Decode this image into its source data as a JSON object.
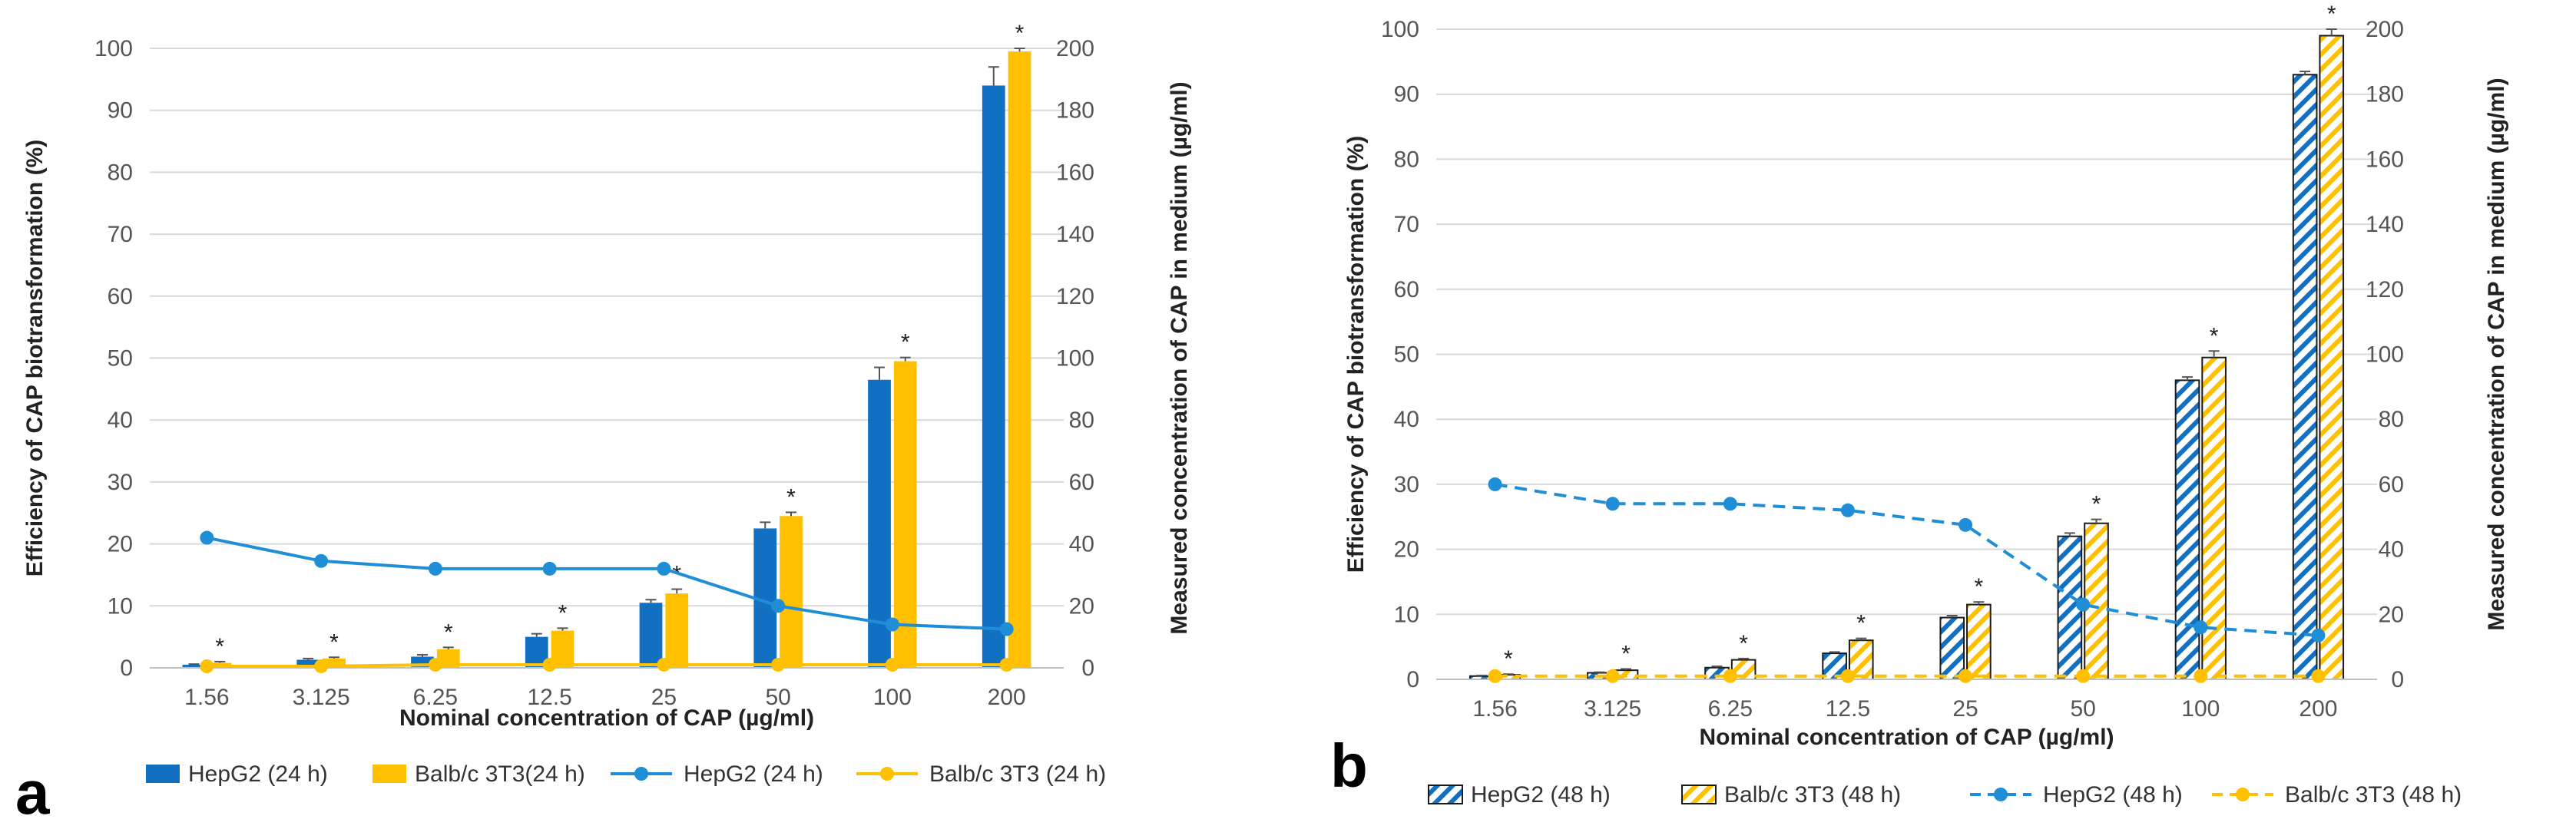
{
  "colors": {
    "hepg2": "#1270C3",
    "balbc": "#FFC000",
    "line_hepg2": "#1F8ED6",
    "line_balbc": "#FFC000"
  },
  "chart_data": [
    {
      "panel_label": "a",
      "type": "bar+line",
      "categories": [
        "1.56",
        "3.125",
        "6.25",
        "12.5",
        "25",
        "50",
        "100",
        "200"
      ],
      "xlabel": "Nominal concentration of CAP (µg/ml)",
      "ylabel": "Efficiency of CAP biotransformation (%)",
      "y2label": "Measured concentration of CAP in medium (µg/ml)",
      "ylim": [
        0,
        100
      ],
      "yticks": [
        0,
        10,
        20,
        30,
        40,
        50,
        60,
        70,
        80,
        90,
        100
      ],
      "y2lim": [
        0,
        200
      ],
      "y2ticks": [
        0,
        20,
        40,
        60,
        80,
        100,
        120,
        140,
        160,
        180,
        200
      ],
      "bar_series": [
        {
          "name": "HepG2 (24 h)",
          "style": "solid",
          "color_key": "hepg2",
          "values": [
            0.5,
            1.3,
            1.8,
            5.0,
            10.5,
            22.5,
            46.5,
            94.0
          ],
          "errors": [
            0.1,
            0.2,
            0.3,
            0.5,
            0.5,
            1.0,
            2.0,
            3.0
          ]
        },
        {
          "name": "Balb/c 3T3(24 h)",
          "style": "solid",
          "color_key": "balbc",
          "values": [
            0.8,
            1.5,
            3.0,
            6.0,
            12.0,
            24.5,
            49.5,
            99.5
          ],
          "errors": [
            0.2,
            0.2,
            0.3,
            0.4,
            0.7,
            0.6,
            0.6,
            0.5
          ]
        }
      ],
      "line_series": [
        {
          "name": "HepG2 (24 h)",
          "style": "solid",
          "color_key": "line_hepg2",
          "values": [
            42,
            34.5,
            32,
            32,
            32,
            20,
            14,
            12.5
          ]
        },
        {
          "name": "Balb/c 3T3 (24 h)",
          "style": "solid",
          "color_key": "line_balbc",
          "values": [
            0.5,
            0.5,
            1,
            1,
            1,
            1,
            1,
            1
          ]
        }
      ],
      "significance": [
        "*",
        "*",
        "*",
        "*",
        "*",
        "*",
        "*",
        "*"
      ]
    },
    {
      "panel_label": "b",
      "type": "bar+line",
      "categories": [
        "1.56",
        "3.125",
        "6.25",
        "12.5",
        "25",
        "50",
        "100",
        "200"
      ],
      "xlabel": "Nominal concentration of CAP (µg/ml)",
      "ylabel": "Efficiency of CAP biotransformation (%)",
      "y2label": "Measured concentration of CAP in medium (µg/ml)",
      "ylim": [
        0,
        100
      ],
      "yticks": [
        0,
        10,
        20,
        30,
        40,
        50,
        60,
        70,
        80,
        90,
        100
      ],
      "y2lim": [
        0,
        200
      ],
      "y2ticks": [
        0,
        20,
        40,
        60,
        80,
        100,
        120,
        140,
        160,
        180,
        200
      ],
      "bar_series": [
        {
          "name": "HepG2 (48 h)",
          "style": "hatched",
          "color_key": "hepg2",
          "values": [
            0.5,
            1.0,
            1.8,
            4.0,
            9.5,
            22.0,
            46.0,
            93.0
          ],
          "errors": [
            0.1,
            0.1,
            0.2,
            0.2,
            0.3,
            0.5,
            0.5,
            0.5
          ]
        },
        {
          "name": "Balb/c 3T3 (48 h)",
          "style": "hatched",
          "color_key": "balbc",
          "values": [
            0.7,
            1.4,
            3.0,
            6.0,
            11.5,
            24.0,
            49.5,
            99.0
          ],
          "errors": [
            0.1,
            0.2,
            0.2,
            0.3,
            0.4,
            0.6,
            1.0,
            1.0
          ]
        }
      ],
      "line_series": [
        {
          "name": "HepG2 (48 h)",
          "style": "dashed",
          "color_key": "line_hepg2",
          "values": [
            60,
            54,
            54,
            52,
            47.5,
            23,
            16,
            13.5
          ]
        },
        {
          "name": "Balb/c 3T3 (48 h)",
          "style": "dashed",
          "color_key": "line_balbc",
          "values": [
            1,
            1,
            1,
            1,
            1,
            1,
            1,
            1
          ]
        }
      ],
      "significance": [
        "*",
        "*",
        "*",
        "*",
        "*",
        "*",
        "*",
        "*"
      ]
    }
  ]
}
